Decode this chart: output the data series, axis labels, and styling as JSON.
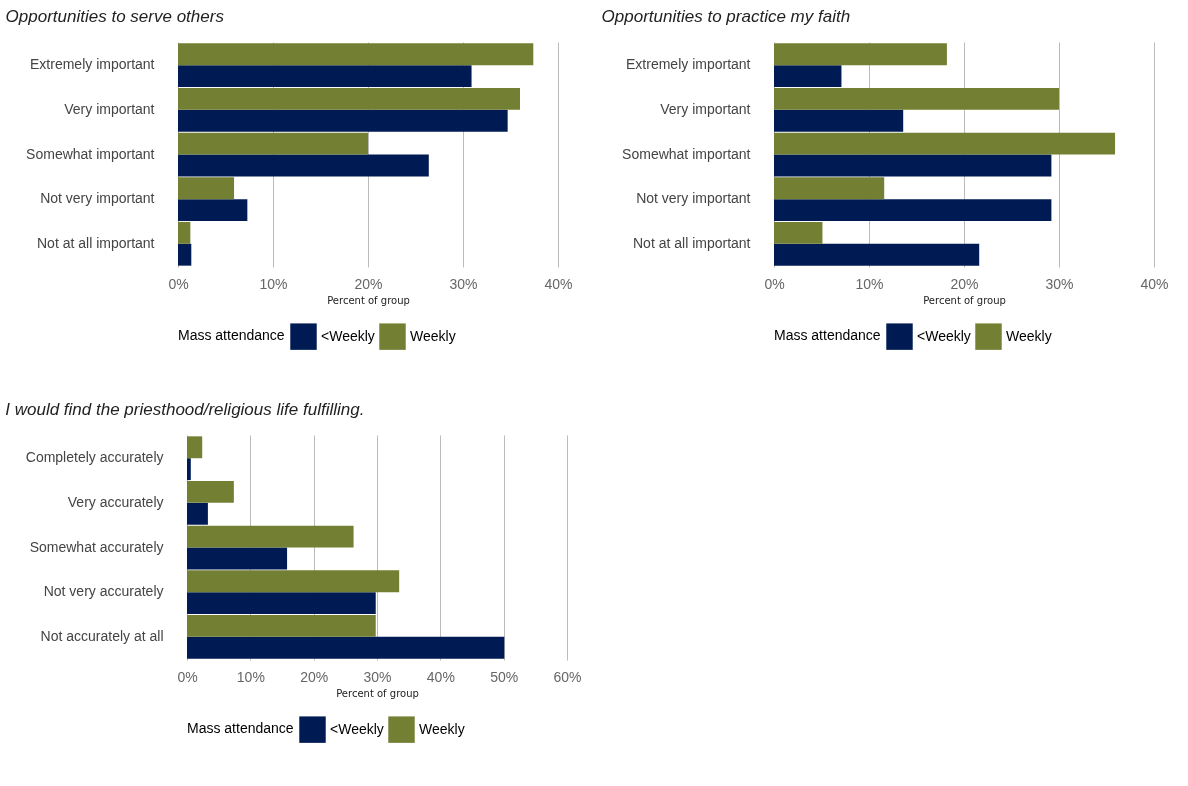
{
  "chart_data": [
    {
      "type": "bar",
      "orientation": "horizontal",
      "title": "Opportunities to serve others",
      "xlabel": "Percent of group",
      "legend_title": "Mass attendance",
      "legend": "bottom",
      "grid": "x",
      "categories": [
        "Extremely important",
        "Very important",
        "Somewhat important",
        "Not very important",
        "Not at all important"
      ],
      "xlim": [
        0,
        40
      ],
      "xticks": [
        {
          "value": 0,
          "label": "0%"
        },
        {
          "value": 10,
          "label": "10%"
        },
        {
          "value": 20,
          "label": "20%"
        },
        {
          "value": 30,
          "label": "30%"
        },
        {
          "value": 40,
          "label": "40%"
        }
      ],
      "series": [
        {
          "name": "<Weekly",
          "color": "#001b54",
          "values": [
            30.9,
            34.7,
            26.4,
            7.3,
            1.4
          ]
        },
        {
          "name": "Weekly",
          "color": "#737f33",
          "values": [
            37.4,
            36.0,
            20.0,
            5.9,
            1.3
          ]
        }
      ]
    },
    {
      "type": "bar",
      "orientation": "horizontal",
      "title": "Opportunities to practice my faith",
      "xlabel": "Percent of group",
      "legend_title": "Mass attendance",
      "legend": "bottom",
      "grid": "x",
      "categories": [
        "Extremely important",
        "Very important",
        "Somewhat important",
        "Not very important",
        "Not at all important"
      ],
      "xlim": [
        0,
        40
      ],
      "xticks": [
        {
          "value": 0,
          "label": "0%"
        },
        {
          "value": 10,
          "label": "10%"
        },
        {
          "value": 20,
          "label": "20%"
        },
        {
          "value": 30,
          "label": "30%"
        },
        {
          "value": 40,
          "label": "40%"
        }
      ],
      "series": [
        {
          "name": "<Weekly",
          "color": "#001b54",
          "values": [
            7.1,
            13.6,
            29.2,
            29.2,
            21.6
          ]
        },
        {
          "name": "Weekly",
          "color": "#737f33",
          "values": [
            18.2,
            30.0,
            35.9,
            11.6,
            5.1
          ]
        }
      ]
    },
    {
      "type": "bar",
      "orientation": "horizontal",
      "title": "I would find the priesthood/religious life fulfilling.",
      "xlabel": "Percent of group",
      "legend_title": "Mass attendance",
      "legend": "bottom",
      "grid": "x",
      "categories": [
        "Completely accurately",
        "Very accurately",
        "Somewhat accurately",
        "Not very accurately",
        "Not accurately at all"
      ],
      "xlim": [
        0,
        60
      ],
      "xticks": [
        {
          "value": 0,
          "label": "0%"
        },
        {
          "value": 10,
          "label": "10%"
        },
        {
          "value": 20,
          "label": "20%"
        },
        {
          "value": 30,
          "label": "30%"
        },
        {
          "value": 40,
          "label": "40%"
        },
        {
          "value": 50,
          "label": "50%"
        },
        {
          "value": 60,
          "label": "60%"
        }
      ],
      "series": [
        {
          "name": "<Weekly",
          "color": "#001b54",
          "values": [
            0.6,
            3.3,
            15.8,
            29.8,
            50.1
          ]
        },
        {
          "name": "Weekly",
          "color": "#737f33",
          "values": [
            2.4,
            7.4,
            26.3,
            33.5,
            29.8
          ]
        }
      ]
    }
  ]
}
